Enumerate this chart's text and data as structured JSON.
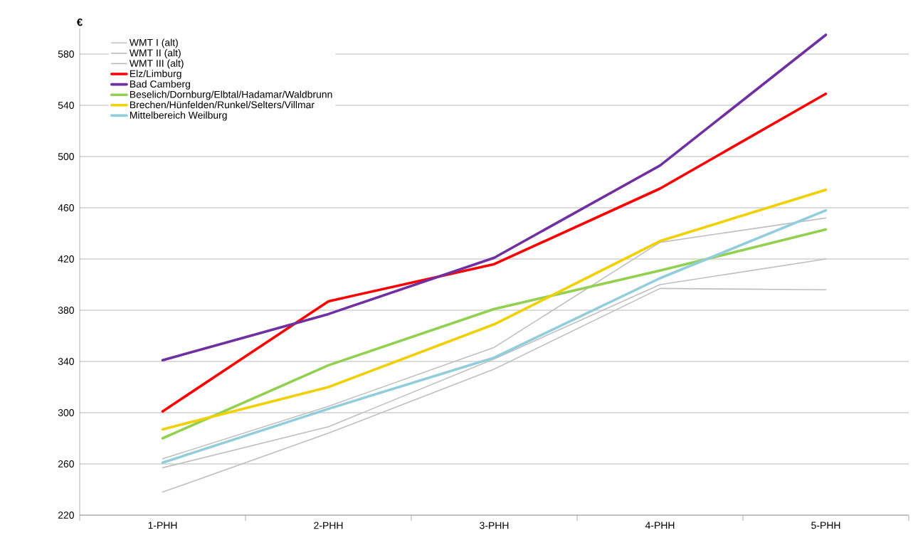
{
  "chart_data": {
    "type": "line",
    "ylabel": "€",
    "categories": [
      "1-PHH",
      "2-PHH",
      "3-PHH",
      "4-PHH",
      "5-PHH"
    ],
    "series": [
      {
        "name": "WMT I (alt)",
        "color": "#bfbfbf",
        "values": [
          264,
          305,
          351,
          433,
          452
        ]
      },
      {
        "name": "WMT II (alt)",
        "color": "#bfbfbf",
        "values": [
          257,
          289,
          342,
          400,
          420
        ]
      },
      {
        "name": "WMT III (alt)",
        "color": "#bfbfbf",
        "values": [
          238,
          284,
          334,
          397,
          396
        ]
      },
      {
        "name": "Elz/Limburg",
        "color": "#ff0000",
        "values": [
          301,
          387,
          416,
          475,
          549
        ]
      },
      {
        "name": "Bad Camberg",
        "color": "#7030a0",
        "values": [
          341,
          377,
          421,
          493,
          595
        ]
      },
      {
        "name": "Beselich/Dornburg/Elbtal/Hadamar/Waldbrunn",
        "color": "#92d050",
        "values": [
          280,
          337,
          381,
          411,
          443
        ]
      },
      {
        "name": "Brechen/Hünfelden/Runkel/Selters/Villmar",
        "color": "#f0d000",
        "values": [
          287,
          320,
          369,
          434,
          474
        ]
      },
      {
        "name": "Mittelbereich Weilburg",
        "color": "#92cddc",
        "values": [
          261,
          303,
          343,
          405,
          458
        ]
      }
    ],
    "ylim": [
      220,
      600
    ],
    "yticks": [
      220,
      260,
      300,
      340,
      380,
      420,
      460,
      500,
      540,
      580
    ],
    "grid": "y",
    "legend": "top left",
    "marker": "none",
    "line_style": "solid"
  }
}
